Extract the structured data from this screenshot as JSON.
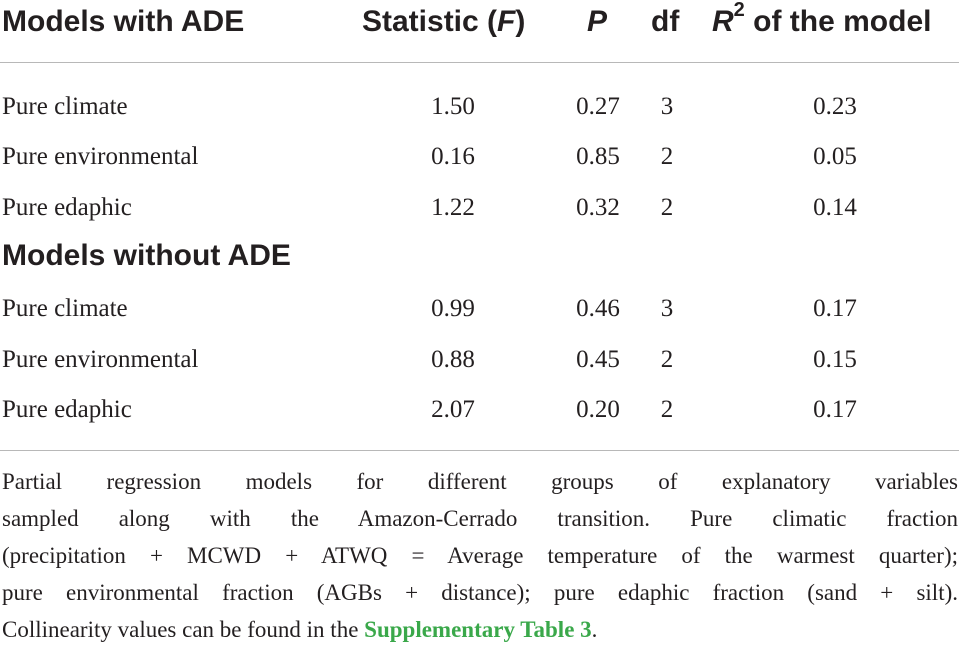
{
  "header": {
    "col_model": "Models with ADE",
    "col_stat_prefix": "Statistic (",
    "col_stat_var": "F",
    "col_stat_suffix": ")",
    "col_p": "P",
    "col_df": "df",
    "col_r2_var": "R",
    "col_r2_sup": "2",
    "col_r2_suffix": " of the model"
  },
  "groups": [
    {
      "title": "Models with ADE",
      "rows": [
        {
          "label": "Pure climate",
          "f": "1.50",
          "p": "0.27",
          "df": "3",
          "r2": "0.23"
        },
        {
          "label": "Pure environmental",
          "f": "0.16",
          "p": "0.85",
          "df": "2",
          "r2": "0.05"
        },
        {
          "label": "Pure edaphic",
          "f": "1.22",
          "p": "0.32",
          "df": "2",
          "r2": "0.14"
        }
      ]
    },
    {
      "title": "Models without ADE",
      "rows": [
        {
          "label": "Pure climate",
          "f": "0.99",
          "p": "0.46",
          "df": "3",
          "r2": "0.17"
        },
        {
          "label": "Pure environmental",
          "f": "0.88",
          "p": "0.45",
          "df": "2",
          "r2": "0.15"
        },
        {
          "label": "Pure edaphic",
          "f": "2.07",
          "p": "0.20",
          "df": "2",
          "r2": "0.17"
        }
      ]
    }
  ],
  "footnote": {
    "line1": "Partial regression models for different groups of explanatory variables",
    "line2": "sampled along with the Amazon-Cerrado transition. Pure climatic fraction",
    "line3": "(precipitation + MCWD + ATWQ = Average temperature of the warmest quarter);",
    "line4": "pure environmental fraction (AGBs + distance); pure edaphic fraction (sand + silt).",
    "line5_prefix": "Collinearity values can be found in the ",
    "link_text": "Supplementary Table 3",
    "line5_suffix": "."
  },
  "colors": {
    "text": "#231f20",
    "rule": "#b8b8b8",
    "link": "#3aa84a"
  }
}
